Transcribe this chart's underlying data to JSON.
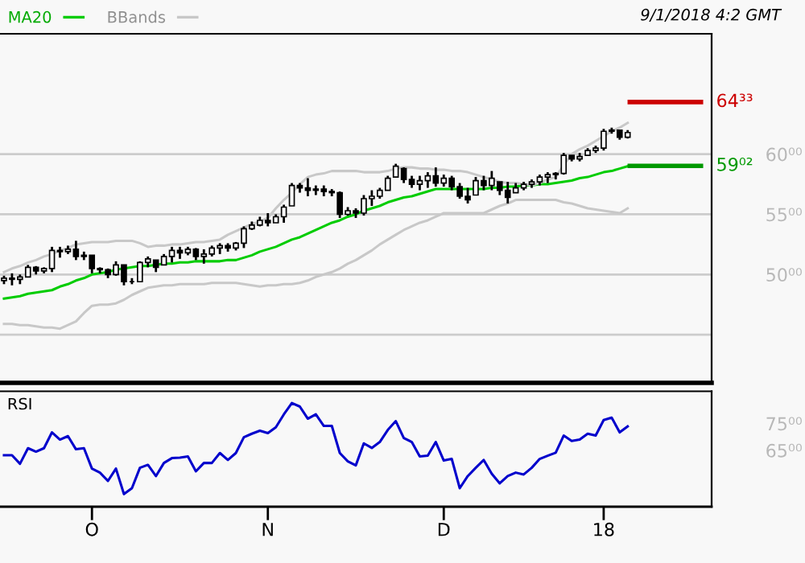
{
  "chart_data": [
    {
      "type": "candlestick",
      "legend": "top left",
      "grid": "y",
      "tick_labels": "y",
      "marker": "none",
      "line_style": "solid",
      "categories": [
        null,
        null,
        null,
        null,
        null,
        null,
        null,
        null,
        null,
        null,
        null,
        null,
        null,
        null,
        null,
        null,
        null,
        null,
        null,
        null,
        null,
        null,
        null,
        null,
        null,
        null,
        null,
        null,
        null,
        null,
        null,
        null,
        null,
        null,
        null,
        null,
        null,
        null,
        null,
        null,
        null,
        null,
        null,
        null,
        null,
        null,
        null,
        null,
        null,
        null,
        null,
        null,
        null,
        null,
        null,
        null,
        null,
        null,
        null,
        null,
        null,
        null,
        null,
        null,
        null,
        null,
        null,
        null,
        null,
        null,
        null,
        null,
        null,
        null,
        null,
        null,
        null,
        null,
        null
      ],
      "ohlc": [
        [
          49.5,
          49.9,
          49.2,
          49.7
        ],
        [
          49.7,
          50.1,
          49.1,
          49.6
        ],
        [
          49.6,
          50.0,
          49.2,
          49.8
        ],
        [
          49.8,
          50.8,
          49.8,
          50.6
        ],
        [
          50.6,
          50.7,
          50.0,
          50.3
        ],
        [
          50.3,
          50.6,
          50.1,
          50.5
        ],
        [
          50.5,
          52.3,
          50.2,
          52.0
        ],
        [
          52.0,
          52.3,
          51.4,
          51.9
        ],
        [
          51.9,
          52.4,
          51.7,
          52.1
        ],
        [
          52.1,
          52.8,
          51.2,
          51.5
        ],
        [
          51.5,
          51.9,
          51.2,
          51.6
        ],
        [
          51.6,
          51.6,
          50.1,
          50.5
        ],
        [
          50.5,
          50.6,
          50.1,
          50.4
        ],
        [
          50.4,
          50.5,
          49.7,
          50.0
        ],
        [
          50.0,
          51.1,
          49.9,
          50.8
        ],
        [
          50.8,
          50.8,
          49.1,
          49.4
        ],
        [
          49.4,
          49.7,
          49.2,
          49.4
        ],
        [
          49.4,
          51.1,
          49.4,
          51.0
        ],
        [
          51.0,
          51.5,
          50.6,
          51.3
        ],
        [
          51.2,
          51.2,
          50.2,
          50.6
        ],
        [
          50.8,
          51.7,
          50.8,
          51.5
        ],
        [
          51.5,
          52.3,
          51.0,
          52.0
        ],
        [
          52.0,
          52.3,
          51.3,
          51.8
        ],
        [
          51.8,
          52.3,
          51.6,
          52.1
        ],
        [
          52.1,
          52.2,
          51.2,
          51.5
        ],
        [
          51.5,
          52.1,
          50.9,
          51.7
        ],
        [
          51.7,
          52.4,
          51.5,
          52.2
        ],
        [
          52.2,
          52.6,
          51.7,
          52.4
        ],
        [
          52.4,
          52.6,
          51.9,
          52.2
        ],
        [
          52.2,
          52.7,
          52.0,
          52.6
        ],
        [
          52.6,
          54.0,
          52.2,
          53.8
        ],
        [
          53.8,
          54.4,
          53.7,
          54.1
        ],
        [
          54.1,
          54.8,
          54.0,
          54.5
        ],
        [
          54.5,
          55.1,
          54.0,
          54.3
        ],
        [
          54.3,
          55.0,
          54.3,
          54.8
        ],
        [
          54.8,
          55.8,
          54.3,
          55.6
        ],
        [
          55.7,
          57.6,
          55.7,
          57.4
        ],
        [
          57.4,
          57.6,
          56.8,
          57.2
        ],
        [
          57.2,
          58.0,
          56.5,
          57.0
        ],
        [
          57.0,
          57.4,
          56.6,
          57.1
        ],
        [
          57.1,
          57.4,
          56.5,
          56.9
        ],
        [
          56.9,
          57.1,
          56.5,
          56.8
        ],
        [
          56.8,
          56.9,
          54.7,
          55.0
        ],
        [
          55.0,
          55.6,
          54.9,
          55.3
        ],
        [
          55.3,
          55.5,
          54.7,
          55.1
        ],
        [
          55.1,
          56.6,
          54.9,
          56.3
        ],
        [
          56.3,
          57.0,
          55.7,
          56.5
        ],
        [
          56.5,
          57.2,
          56.3,
          57.0
        ],
        [
          57.0,
          58.2,
          57.0,
          58.0
        ],
        [
          58.1,
          59.2,
          58.1,
          59.0
        ],
        [
          58.8,
          58.9,
          57.6,
          57.9
        ],
        [
          57.9,
          58.2,
          57.2,
          57.5
        ],
        [
          57.5,
          58.2,
          57.0,
          57.8
        ],
        [
          57.8,
          58.5,
          57.2,
          58.2
        ],
        [
          58.2,
          58.9,
          57.3,
          57.6
        ],
        [
          57.6,
          58.3,
          57.3,
          58.0
        ],
        [
          58.0,
          58.2,
          57.0,
          57.3
        ],
        [
          57.3,
          57.6,
          56.3,
          56.5
        ],
        [
          56.5,
          57.2,
          55.9,
          56.2
        ],
        [
          56.6,
          58.1,
          56.6,
          57.8
        ],
        [
          57.8,
          58.2,
          57.0,
          57.4
        ],
        [
          57.4,
          58.6,
          57.0,
          58.0
        ],
        [
          57.7,
          57.7,
          56.6,
          57.0
        ],
        [
          57.0,
          57.7,
          55.9,
          56.4
        ],
        [
          56.8,
          57.6,
          56.8,
          57.2
        ],
        [
          57.2,
          57.7,
          57.0,
          57.5
        ],
        [
          57.5,
          57.9,
          57.2,
          57.7
        ],
        [
          57.7,
          58.3,
          57.4,
          58.1
        ],
        [
          58.1,
          58.5,
          57.6,
          58.3
        ],
        [
          58.3,
          58.5,
          57.9,
          58.4
        ],
        [
          58.4,
          60.1,
          58.3,
          59.9
        ],
        [
          59.9,
          59.9,
          59.4,
          59.6
        ],
        [
          59.6,
          60.1,
          59.4,
          59.8
        ],
        [
          59.9,
          60.5,
          59.9,
          60.3
        ],
        [
          60.3,
          60.7,
          60.1,
          60.5
        ],
        [
          60.5,
          62.1,
          60.3,
          61.9
        ],
        [
          61.9,
          62.2,
          61.7,
          62.0
        ],
        [
          62.0,
          62.0,
          61.2,
          61.4
        ],
        [
          61.4,
          62.0,
          61.3,
          61.8
        ]
      ],
      "series": [
        {
          "name": "MA20",
          "type": "line",
          "color": "#00cc00",
          "values": [
            48.0,
            48.1,
            48.2,
            48.4,
            48.5,
            48.6,
            48.7,
            49.0,
            49.2,
            49.5,
            49.7,
            50.0,
            50.1,
            50.2,
            50.4,
            50.5,
            50.6,
            50.7,
            50.7,
            50.8,
            50.9,
            50.9,
            51.0,
            51.0,
            51.1,
            51.1,
            51.1,
            51.1,
            51.2,
            51.2,
            51.4,
            51.6,
            51.9,
            52.1,
            52.3,
            52.6,
            52.9,
            53.1,
            53.4,
            53.7,
            54.0,
            54.3,
            54.5,
            54.8,
            55.0,
            55.3,
            55.5,
            55.7,
            56.0,
            56.2,
            56.4,
            56.5,
            56.7,
            56.9,
            57.1,
            57.1,
            57.1,
            57.1,
            57.1,
            57.1,
            57.1,
            57.2,
            57.2,
            57.3,
            57.3,
            57.4,
            57.4,
            57.5,
            57.5,
            57.6,
            57.7,
            57.8,
            58.0,
            58.1,
            58.3,
            58.5,
            58.6,
            58.8,
            59.0
          ]
        },
        {
          "name": "BBands",
          "type": "line",
          "color": "#c8c8c8",
          "values": [
            50.2,
            50.5,
            50.7,
            51.0,
            51.2,
            51.5,
            51.7,
            52.0,
            52.2,
            52.5,
            52.6,
            52.7,
            52.7,
            52.7,
            52.8,
            52.8,
            52.8,
            52.6,
            52.3,
            52.4,
            52.4,
            52.5,
            52.5,
            52.6,
            52.7,
            52.7,
            52.8,
            52.9,
            53.3,
            53.6,
            53.9,
            54.2,
            54.4,
            54.7,
            55.5,
            56.2,
            56.8,
            57.5,
            58.1,
            58.3,
            58.4,
            58.6,
            58.6,
            58.6,
            58.6,
            58.5,
            58.5,
            58.5,
            58.6,
            58.8,
            58.9,
            58.9,
            58.8,
            58.8,
            58.7,
            58.7,
            58.6,
            58.6,
            58.5,
            58.3,
            58.1,
            57.9,
            57.7,
            57.6,
            57.6,
            57.5,
            57.4,
            57.6,
            57.9,
            58.1,
            59.1,
            60.0,
            60.4,
            60.7,
            61.1,
            61.5,
            61.9,
            62.2,
            62.6
          ]
        },
        {
          "type": "line",
          "color": "#c8c8c8",
          "values": [
            45.9,
            45.9,
            45.8,
            45.8,
            45.7,
            45.6,
            45.6,
            45.5,
            45.8,
            46.1,
            46.8,
            47.4,
            47.5,
            47.5,
            47.6,
            47.9,
            48.3,
            48.6,
            48.9,
            49.0,
            49.1,
            49.1,
            49.2,
            49.2,
            49.2,
            49.2,
            49.3,
            49.3,
            49.3,
            49.3,
            49.2,
            49.1,
            49.0,
            49.1,
            49.1,
            49.2,
            49.2,
            49.3,
            49.5,
            49.8,
            50.0,
            50.2,
            50.5,
            50.9,
            51.2,
            51.6,
            52.0,
            52.5,
            52.9,
            53.3,
            53.7,
            54.0,
            54.3,
            54.5,
            54.8,
            55.1,
            55.1,
            55.1,
            55.1,
            55.1,
            55.1,
            55.4,
            55.7,
            55.9,
            56.2,
            56.2,
            56.2,
            56.2,
            56.2,
            56.2,
            56.0,
            55.9,
            55.7,
            55.5,
            55.4,
            55.3,
            55.2,
            55.1,
            55.5
          ]
        }
      ],
      "ref_lines": [
        {
          "axis": "y",
          "value": 64.33,
          "label": "64³³",
          "color": "#cc0000"
        },
        {
          "axis": "y",
          "value": 59.02,
          "label": "59⁰²",
          "color": "#009900"
        }
      ],
      "ylim": [
        41,
        70
      ],
      "yticks": [
        {
          "value": 45,
          "label": null
        },
        {
          "value": 50,
          "label": "50⁰⁰"
        },
        {
          "value": 55,
          "label": "55⁰⁰"
        },
        {
          "value": 60,
          "label": "60⁰⁰"
        }
      ],
      "annotations": [
        "9/1/2018 4:2 GMT"
      ]
    },
    {
      "type": "line",
      "title": "RSI",
      "grid": false,
      "marker": "none",
      "line_style": "solid",
      "categories": [
        null,
        null,
        null,
        null,
        null,
        null,
        null,
        null,
        null,
        null,
        null,
        "O",
        null,
        null,
        null,
        null,
        null,
        null,
        null,
        null,
        null,
        null,
        null,
        null,
        null,
        null,
        null,
        null,
        null,
        null,
        null,
        null,
        null,
        "N",
        null,
        null,
        null,
        null,
        null,
        null,
        null,
        null,
        null,
        null,
        null,
        null,
        null,
        null,
        null,
        null,
        null,
        null,
        null,
        null,
        null,
        "D",
        null,
        null,
        null,
        null,
        null,
        null,
        null,
        null,
        null,
        null,
        null,
        null,
        null,
        null,
        null,
        null,
        null,
        null,
        null,
        "18",
        null,
        null,
        null
      ],
      "series": [
        {
          "color": "#0000cc",
          "values": [
            63.2,
            63.2,
            60.0,
            65.8,
            64.5,
            65.8,
            71.7,
            69.0,
            70.3,
            65.4,
            65.8,
            58.2,
            56.7,
            53.6,
            58.2,
            48.7,
            50.9,
            58.5,
            59.6,
            55.4,
            60.3,
            62.1,
            62.3,
            62.7,
            57.2,
            60.3,
            60.3,
            64.0,
            61.4,
            64.0,
            69.9,
            71.2,
            72.3,
            71.4,
            73.6,
            78.4,
            82.6,
            81.3,
            76.8,
            78.4,
            74.1,
            74.1,
            64.0,
            60.9,
            59.4,
            67.6,
            65.9,
            68.1,
            72.6,
            75.9,
            69.6,
            68.1,
            62.7,
            63.0,
            68.1,
            61.2,
            61.8,
            50.9,
            55.4,
            58.5,
            61.4,
            56.3,
            52.7,
            55.4,
            56.7,
            56.0,
            58.5,
            61.8,
            63.0,
            64.1,
            70.5,
            68.5,
            69.0,
            71.2,
            70.5,
            76.3,
            77.2,
            71.7,
            73.9
          ]
        }
      ],
      "ylim": [
        44,
        87
      ],
      "yticks": [
        {
          "value": 65,
          "label": "65⁰⁰"
        },
        {
          "value": 75,
          "label": "75⁰⁰"
        }
      ]
    }
  ]
}
